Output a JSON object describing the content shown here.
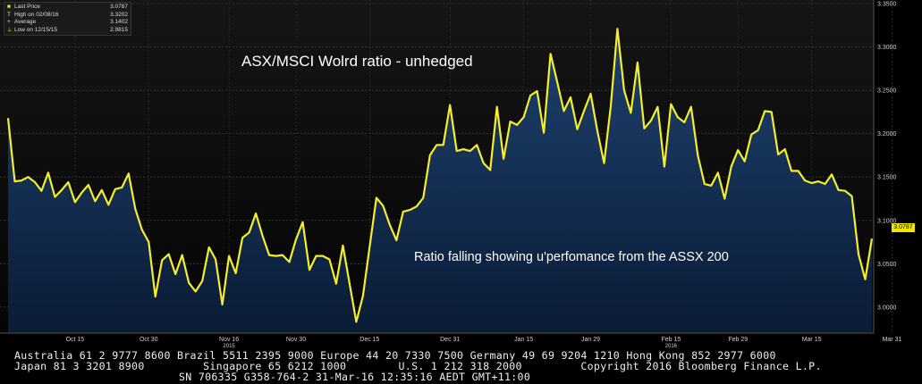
{
  "chart_data": {
    "type": "area",
    "title": "ASX/MSCI Wolrd ratio - unhedged",
    "annotation": "Ratio falling showing u'perfomance from the ASSX 200",
    "ylim": [
      2.97,
      3.35
    ],
    "y_ticks": [
      "3.3500",
      "3.3000",
      "3.2500",
      "3.2000",
      "3.1500",
      "3.1000",
      "3.0500",
      "3.0000"
    ],
    "y_tick_values": [
      3.35,
      3.3,
      3.25,
      3.2,
      3.15,
      3.1,
      3.05,
      3.0
    ],
    "x_ticks": [
      {
        "label": "Oct 15",
        "sub": "",
        "i": 10
      },
      {
        "label": "Oct 30",
        "sub": "",
        "i": 21
      },
      {
        "label": "Nov 16",
        "sub": "2015",
        "i": 33
      },
      {
        "label": "Nov 30",
        "sub": "",
        "i": 43
      },
      {
        "label": "Dec 15",
        "sub": "",
        "i": 54
      },
      {
        "label": "Dec 31",
        "sub": "",
        "i": 66
      },
      {
        "label": "Jan 15",
        "sub": "",
        "i": 77
      },
      {
        "label": "Jan 29",
        "sub": "",
        "i": 87
      },
      {
        "label": "Feb 15",
        "sub": "2016",
        "i": 99
      },
      {
        "label": "Feb 29",
        "sub": "",
        "i": 109
      },
      {
        "label": "Mar 15",
        "sub": "",
        "i": 120
      },
      {
        "label": "Mar 31",
        "sub": "",
        "i": 132
      }
    ],
    "values": [
      3.218,
      3.145,
      3.146,
      3.15,
      3.144,
      3.134,
      3.155,
      3.127,
      3.135,
      3.144,
      3.121,
      3.132,
      3.141,
      3.122,
      3.135,
      3.118,
      3.136,
      3.138,
      3.154,
      3.113,
      3.089,
      3.075,
      3.012,
      3.054,
      3.061,
      3.038,
      3.06,
      3.028,
      3.018,
      3.03,
      3.069,
      3.055,
      3.003,
      3.059,
      3.039,
      3.08,
      3.086,
      3.108,
      3.082,
      3.06,
      3.059,
      3.06,
      3.052,
      3.078,
      3.098,
      3.043,
      3.059,
      3.059,
      3.055,
      3.027,
      3.071,
      3.027,
      2.983,
      3.013,
      3.07,
      3.126,
      3.117,
      3.095,
      3.077,
      3.11,
      3.112,
      3.116,
      3.126,
      3.175,
      3.187,
      3.187,
      3.233,
      3.18,
      3.182,
      3.18,
      3.187,
      3.166,
      3.158,
      3.231,
      3.171,
      3.214,
      3.21,
      3.219,
      3.244,
      3.249,
      3.201,
      3.292,
      3.26,
      3.226,
      3.242,
      3.205,
      3.226,
      3.246,
      3.203,
      3.166,
      3.232,
      3.321,
      3.25,
      3.224,
      3.282,
      3.206,
      3.215,
      3.231,
      3.162,
      3.234,
      3.219,
      3.213,
      3.231,
      3.175,
      3.142,
      3.14,
      3.155,
      3.125,
      3.162,
      3.181,
      3.168,
      3.199,
      3.204,
      3.226,
      3.225,
      3.176,
      3.182,
      3.157,
      3.157,
      3.146,
      3.143,
      3.145,
      3.142,
      3.153,
      3.135,
      3.134,
      3.128,
      3.061,
      3.032,
      3.079
    ]
  },
  "legend": [
    {
      "label": "Last Price",
      "value": "3.0787",
      "marker": "■"
    },
    {
      "label": "High on 02/08/16",
      "value": "3.3202",
      "marker": "T"
    },
    {
      "label": "Average",
      "value": "3.1402",
      "marker": "+"
    },
    {
      "label": "Low on 12/15/15",
      "value": "2.9815",
      "marker": "⊥"
    }
  ],
  "last_price_tag": "3.0787",
  "footer": {
    "line1": "Australia 61 2 9777 8600 Brazil 5511 2395 9000 Europe 44 20 7330 7500 Germany 49 69 9204 1210 Hong Kong 852 2977 6000",
    "line2": "Japan 81 3 3201 8900         Singapore 65 6212 1000        U.S. 1 212 318 2000         Copyright 2016 Bloomberg Finance L.P.",
    "line3": "SN 706335 G358-764-2 31-Mar-16 12:35:16 AEDT GMT+11:00"
  },
  "colors": {
    "line": "#f5ee2a",
    "area_top": "#1d3f6e",
    "area_bottom": "#0b1f3c",
    "plot_bg_top": "#141414",
    "plot_bg_bottom": "#060606",
    "grid": "#3a3a3a",
    "axis_text": "#cfcfcf",
    "title_text": "#ffffff",
    "tag_bg": "#f2e600"
  }
}
